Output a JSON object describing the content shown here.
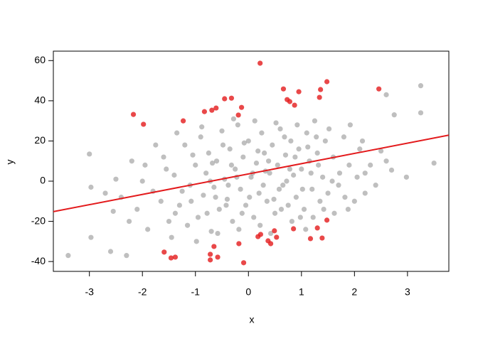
{
  "chart_data": {
    "type": "scatter",
    "x_label": "x",
    "y_label": "y",
    "xlim": [
      -3.68,
      3.78
    ],
    "ylim": [
      -44.9,
      64.7
    ],
    "xticks": [
      -3,
      -2,
      -1,
      0,
      1,
      2,
      3
    ],
    "yticks": [
      -40,
      -20,
      0,
      20,
      40,
      60
    ],
    "grid": false,
    "series": [
      {
        "color": "#808080",
        "x": [
          -1.8,
          -1.6,
          -1.5,
          -1.4,
          -1.3,
          -1.2,
          -1.1,
          -1.0,
          -0.95,
          -0.9,
          -0.85,
          -0.8,
          -0.75,
          -0.7,
          -0.65,
          -0.6,
          -0.55,
          -0.5,
          -0.45,
          -0.4,
          -0.35,
          -0.3,
          -0.25,
          -0.2,
          -0.15,
          -0.1,
          -0.05,
          0,
          0.05,
          0.1,
          0.15,
          0.2,
          0.25,
          0.3,
          0.35,
          0.4,
          0.45,
          0.5,
          0.55,
          0.6,
          0.65,
          0.7,
          0.75,
          0.8,
          0.85,
          0.9,
          0.95,
          1.0,
          1.05,
          1.1,
          1.15,
          1.2,
          1.25,
          1.3,
          1.35,
          1.4,
          1.45,
          1.5,
          1.6,
          1.7,
          1.8,
          1.9,
          2.0,
          2.1,
          2.2,
          -2.2,
          -2.1,
          -2.0,
          -1.9,
          -1.75,
          -1.65,
          -1.55,
          -1.45,
          -1.35,
          -1.25,
          -1.15,
          -1.05,
          -0.98,
          -0.88,
          -0.78,
          -0.68,
          -0.58,
          -0.48,
          -0.38,
          -0.28,
          -0.18,
          -0.08,
          0.02,
          0.12,
          0.22,
          0.32,
          0.42,
          0.52,
          0.62,
          0.72,
          0.82,
          0.92,
          1.02,
          1.12,
          1.22,
          1.32,
          1.42,
          1.52,
          1.62,
          1.72,
          1.82,
          1.92,
          2.05,
          2.15,
          2.3,
          2.4,
          2.5,
          2.6,
          -2.4,
          -2.7,
          -2.25,
          -1.95,
          -0.42,
          0.08,
          0.58,
          0.38,
          -0.12,
          -0.62,
          0.68,
          1.08,
          -1.08,
          0.28,
          -0.22,
          0.18,
          0.48,
          0.78,
          -0.32,
          1.28,
          1.58,
          1.88,
          -1.38,
          -0.72,
          0.88,
          0.98,
          1.18,
          -3.4,
          -3.0,
          -2.97,
          -2.97,
          -2.6,
          -2.5,
          -2.3,
          3.25,
          3.25,
          3.5,
          2.98,
          2.7,
          2.6,
          2.75,
          2.2,
          -2.55
        ],
        "y": [
          -5,
          12,
          -20,
          3,
          -12,
          18,
          -2,
          8,
          -18,
          22,
          -7,
          4,
          14,
          -25,
          -3,
          10,
          -14,
          25,
          1,
          -9,
          16,
          -20,
          6,
          28,
          -4,
          12,
          -12,
          20,
          2,
          -18,
          9,
          -6,
          24,
          14,
          -10,
          4,
          18,
          -16,
          8,
          26,
          -2,
          13,
          -12,
          20,
          3,
          -8,
          16,
          6,
          -14,
          24,
          10,
          -4,
          30,
          14,
          -10,
          2,
          20,
          -6,
          12,
          -2,
          22,
          8,
          -10,
          16,
          4,
          10,
          -14,
          0,
          -24,
          18,
          -10,
          6,
          -28,
          24,
          -5,
          -22,
          13,
          -30,
          27,
          -16,
          9,
          -26,
          18,
          -2,
          31,
          -24,
          19,
          -8,
          30,
          -22,
          5,
          -26,
          29,
          -14,
          0,
          -20,
          28,
          -4,
          17,
          -18,
          8,
          -14,
          26,
          -16,
          4,
          -8,
          28,
          2,
          20,
          8,
          -2,
          15,
          10,
          -8,
          -6,
          -20,
          8,
          -12,
          4,
          -4,
          10,
          -16,
          -8,
          22,
          -24,
          -10,
          -2,
          2,
          15,
          -9,
          6,
          8,
          22,
          0,
          -14,
          -16,
          0,
          12,
          -18,
          4,
          -37,
          13.5,
          -3,
          -28,
          -35,
          1,
          -37,
          47.5,
          34,
          9,
          2,
          5.5,
          43,
          33,
          -6,
          -15
        ]
      },
      {
        "color": "#e31a1c",
        "x": [
          -2.17,
          -1.98,
          -1.23,
          -0.83,
          -0.69,
          -0.61,
          -0.45,
          -0.32,
          -0.19,
          -0.13,
          0.22,
          0.66,
          0.73,
          0.78,
          0.87,
          0.95,
          1.34,
          1.36,
          1.48,
          2.46,
          -1.59,
          -1.46,
          -1.38,
          -0.72,
          -0.72,
          -0.65,
          -0.58,
          -0.18,
          -0.09,
          0.18,
          0.23,
          0.37,
          0.42,
          0.49,
          0.53,
          0.85,
          1.17,
          1.3,
          1.39,
          1.48
        ],
        "y": [
          33.2,
          28.3,
          30,
          34.6,
          35.3,
          36.4,
          41,
          41.3,
          32.9,
          36.7,
          58.7,
          45.9,
          40.6,
          39.6,
          37.8,
          44.5,
          41.7,
          45.6,
          49.5,
          45.9,
          -35.3,
          -38.2,
          -37.8,
          -36.4,
          -39.2,
          -32.5,
          -37.8,
          -31.1,
          -40.6,
          -27.6,
          -26.5,
          -29.7,
          -31.1,
          -24.7,
          -27.9,
          -23.7,
          -28.6,
          -23.3,
          -28.3,
          -19.4
        ]
      }
    ],
    "fit": {
      "intercept": 3.6,
      "slope": 5.1,
      "color": "#e31a1c"
    }
  }
}
